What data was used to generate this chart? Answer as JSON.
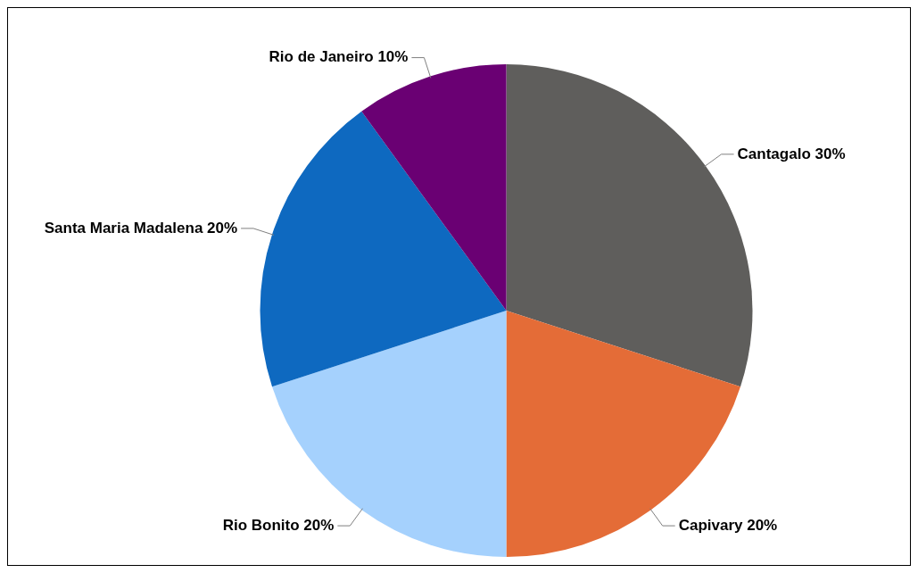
{
  "chart_data": {
    "type": "pie",
    "categories": [
      "Cantagalo",
      "Capivary",
      "Rio Bonito",
      "Santa Maria Madalena",
      "Rio de Janeiro"
    ],
    "values": [
      30,
      20,
      20,
      20,
      10
    ],
    "value_labels": [
      "30%",
      "20%",
      "20%",
      "20%",
      "10%"
    ],
    "colors": [
      "#5f5e5c",
      "#e46c37",
      "#a5d1fd",
      "#0e69c0",
      "#6a0073"
    ],
    "legend": false
  }
}
